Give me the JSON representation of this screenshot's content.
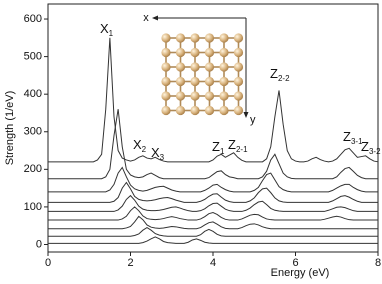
{
  "chart_data": {
    "type": "line",
    "x_label": "Energy (eV)",
    "y_label": "Strength (1/eV)",
    "xlim": [
      0,
      8
    ],
    "xticks": [
      0,
      2,
      4,
      6,
      8
    ],
    "ylim": [
      -20,
      640
    ],
    "yticks": [
      0,
      100,
      200,
      300,
      400,
      500,
      600
    ],
    "x": [
      0,
      0.1,
      0.2,
      0.3,
      0.4,
      0.5,
      0.6,
      0.7,
      0.8,
      0.9,
      1,
      1.1,
      1.2,
      1.3,
      1.4,
      1.5,
      1.6,
      1.7,
      1.8,
      1.9,
      2,
      2.1,
      2.2,
      2.3,
      2.4,
      2.5,
      2.6,
      2.7,
      2.8,
      2.9,
      3,
      3.1,
      3.2,
      3.3,
      3.4,
      3.5,
      3.6,
      3.7,
      3.8,
      3.9,
      4,
      4.1,
      4.2,
      4.3,
      4.4,
      4.5,
      4.6,
      4.7,
      4.8,
      4.9,
      5,
      5.1,
      5.2,
      5.3,
      5.4,
      5.5,
      5.6,
      5.7,
      5.8,
      5.9,
      6,
      6.1,
      6.2,
      6.3,
      6.4,
      6.5,
      6.6,
      6.7,
      6.8,
      6.9,
      7,
      7.1,
      7.2,
      7.3,
      7.4,
      7.5,
      7.6,
      7.7,
      7.8,
      7.9,
      8
    ],
    "series": [
      {
        "color": "#333333",
        "values": [
          220,
          220,
          220,
          220,
          220,
          220,
          220,
          220,
          220,
          220,
          220,
          220,
          225,
          240,
          360,
          550,
          340,
          250,
          230,
          225,
          222,
          225,
          232,
          236,
          230,
          228,
          232,
          226,
          222,
          220,
          220,
          220,
          220,
          220,
          220,
          220,
          220,
          220,
          220,
          220,
          225,
          235,
          240,
          232,
          238,
          244,
          232,
          224,
          220,
          220,
          220,
          220,
          220,
          228,
          260,
          340,
          410,
          320,
          250,
          228,
          222,
          220,
          220,
          222,
          228,
          232,
          226,
          222,
          220,
          222,
          228,
          240,
          252,
          256,
          244,
          232,
          234,
          236,
          228,
          222,
          220
        ]
      },
      {
        "color": "#333333",
        "values": [
          175,
          175,
          175,
          175,
          175,
          175,
          175,
          175,
          175,
          175,
          175,
          175,
          175,
          175,
          180,
          200,
          290,
          360,
          260,
          200,
          185,
          180,
          178,
          180,
          186,
          190,
          184,
          178,
          175,
          175,
          175,
          175,
          175,
          175,
          175,
          175,
          175,
          175,
          175,
          178,
          186,
          194,
          196,
          186,
          180,
          178,
          175,
          175,
          175,
          175,
          175,
          175,
          180,
          195,
          225,
          240,
          215,
          190,
          180,
          176,
          175,
          175,
          175,
          175,
          175,
          175,
          175,
          175,
          175,
          175,
          180,
          192,
          202,
          205,
          195,
          184,
          178,
          175,
          175,
          175,
          175
        ]
      },
      {
        "color": "#333333",
        "values": [
          140,
          140,
          140,
          140,
          140,
          140,
          140,
          140,
          140,
          140,
          140,
          140,
          140,
          140,
          140,
          145,
          160,
          190,
          205,
          180,
          158,
          148,
          144,
          142,
          144,
          148,
          152,
          154,
          155,
          150,
          145,
          142,
          140,
          140,
          140,
          140,
          140,
          140,
          144,
          150,
          158,
          160,
          152,
          146,
          142,
          140,
          140,
          140,
          140,
          140,
          144,
          152,
          170,
          186,
          190,
          172,
          154,
          146,
          142,
          140,
          140,
          140,
          140,
          140,
          140,
          140,
          140,
          140,
          140,
          144,
          150,
          156,
          160,
          160,
          152,
          146,
          142,
          140,
          140,
          140,
          140
        ]
      },
      {
        "color": "#333333",
        "values": [
          112,
          112,
          112,
          112,
          112,
          112,
          112,
          112,
          112,
          112,
          112,
          112,
          112,
          112,
          112,
          112,
          115,
          125,
          150,
          165,
          148,
          128,
          120,
          117,
          116,
          117,
          119,
          122,
          124,
          125,
          122,
          118,
          115,
          112,
          112,
          112,
          112,
          115,
          120,
          128,
          134,
          135,
          126,
          118,
          114,
          112,
          112,
          112,
          112,
          116,
          124,
          138,
          148,
          150,
          138,
          124,
          116,
          113,
          112,
          112,
          112,
          112,
          112,
          112,
          112,
          112,
          112,
          112,
          112,
          116,
          122,
          128,
          130,
          126,
          120,
          115,
          112,
          112,
          112,
          112,
          112
        ]
      },
      {
        "color": "#333333",
        "values": [
          88,
          88,
          88,
          88,
          88,
          88,
          88,
          88,
          88,
          88,
          88,
          88,
          88,
          88,
          88,
          88,
          88,
          92,
          102,
          120,
          130,
          118,
          102,
          94,
          91,
          90,
          90,
          91,
          93,
          96,
          99,
          100,
          97,
          93,
          90,
          88,
          88,
          90,
          95,
          103,
          109,
          110,
          102,
          94,
          90,
          88,
          88,
          88,
          91,
          97,
          106,
          113,
          115,
          106,
          96,
          91,
          89,
          88,
          88,
          88,
          88,
          88,
          88,
          88,
          88,
          88,
          88,
          88,
          91,
          95,
          99,
          100,
          98,
          94,
          90,
          88,
          88,
          88,
          88,
          88,
          88
        ]
      },
      {
        "color": "#333333",
        "values": [
          65,
          65,
          65,
          65,
          65,
          65,
          65,
          65,
          65,
          65,
          65,
          65,
          65,
          65,
          65,
          65,
          65,
          65,
          68,
          75,
          90,
          100,
          90,
          76,
          69,
          67,
          66,
          67,
          69,
          72,
          74,
          72,
          69,
          67,
          65,
          65,
          65,
          68,
          74,
          82,
          85,
          80,
          72,
          67,
          65,
          65,
          65,
          68,
          73,
          78,
          80,
          79,
          73,
          68,
          66,
          65,
          65,
          65,
          65,
          65,
          65,
          65,
          65,
          65,
          65,
          65,
          65,
          67,
          70,
          73,
          75,
          73,
          69,
          66,
          65,
          65,
          65,
          65,
          65,
          65,
          65
        ]
      },
      {
        "color": "#333333",
        "values": [
          42,
          42,
          42,
          42,
          42,
          42,
          42,
          42,
          42,
          42,
          42,
          42,
          42,
          42,
          42,
          42,
          42,
          42,
          42,
          44,
          48,
          60,
          75,
          66,
          52,
          46,
          44,
          43,
          44,
          46,
          48,
          47,
          45,
          43,
          42,
          42,
          42,
          45,
          52,
          58,
          60,
          54,
          47,
          43,
          42,
          42,
          42,
          45,
          50,
          54,
          55,
          52,
          47,
          44,
          42,
          42,
          42,
          42,
          42,
          42,
          42,
          42,
          42,
          42,
          42,
          42,
          42,
          42,
          42,
          42,
          42,
          42,
          42,
          42,
          42,
          42,
          42,
          42,
          42,
          42,
          42
        ]
      },
      {
        "color": "#333333",
        "values": [
          22,
          22,
          22,
          22,
          22,
          22,
          22,
          22,
          22,
          22,
          22,
          22,
          22,
          22,
          22,
          22,
          22,
          22,
          22,
          22,
          22,
          24,
          28,
          38,
          45,
          38,
          29,
          25,
          23,
          22,
          22,
          22,
          22,
          22,
          22,
          22,
          22,
          26,
          35,
          40,
          35,
          27,
          23,
          22,
          22,
          22,
          22,
          22,
          22,
          22,
          22,
          22,
          22,
          22,
          22,
          22,
          22,
          22,
          22,
          22,
          22,
          22,
          22,
          22,
          22,
          22,
          22,
          22,
          22,
          22,
          22,
          22,
          22,
          22,
          22,
          22,
          22,
          22,
          22,
          22,
          22
        ]
      },
      {
        "color": "#333333",
        "values": [
          3,
          3,
          3,
          3,
          3,
          3,
          3,
          3,
          3,
          3,
          3,
          3,
          3,
          3,
          3,
          3,
          3,
          3,
          3,
          3,
          3,
          3,
          3,
          5,
          9,
          15,
          20,
          15,
          8,
          5,
          4,
          3,
          3,
          3,
          6,
          12,
          15,
          11,
          6,
          4,
          3,
          3,
          3,
          3,
          3,
          3,
          3,
          3,
          3,
          3,
          3,
          3,
          3,
          3,
          3,
          3,
          3,
          3,
          3,
          3,
          3,
          3,
          3,
          3,
          3,
          3,
          3,
          3,
          3,
          3,
          3,
          3,
          3,
          3,
          3,
          3,
          3,
          3,
          3,
          3,
          3
        ]
      }
    ],
    "annotations": [
      {
        "text": "X",
        "sub": "1"
      },
      {
        "text": "X",
        "sub": "2"
      },
      {
        "text": "X",
        "sub": "3"
      },
      {
        "text": "Z",
        "sub": "1"
      },
      {
        "text": "Z",
        "sub": "2-1"
      },
      {
        "text": "Z",
        "sub": "2-2"
      },
      {
        "text": "Z",
        "sub": "3-1"
      },
      {
        "text": "Z",
        "sub": "3-2"
      }
    ],
    "inset": {
      "x_label": "x",
      "y_label": "y"
    }
  }
}
